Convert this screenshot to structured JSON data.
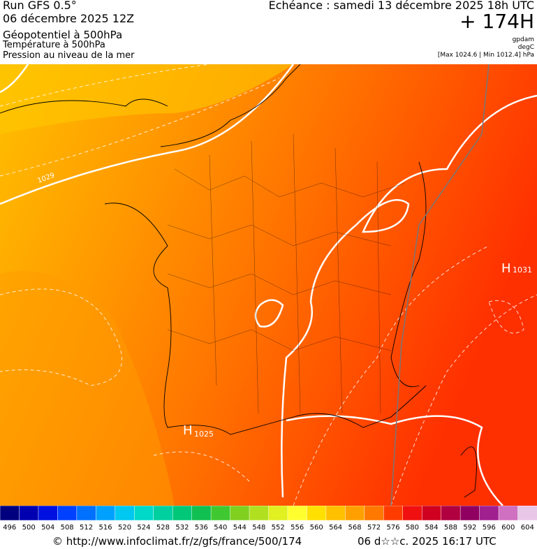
{
  "header": {
    "run": "Run GFS 0.5°",
    "date": "06 décembre 2025 12Z",
    "field1": "Géopotentiel à 500hPa",
    "field2": "Température à 500hPa",
    "field3": "Pression au niveau de la mer",
    "valid": "Echéance : samedi 13 décembre 2025 18h UTC",
    "lead": "+ 174H",
    "unit1": "gpdam",
    "unit2": "degC",
    "range": "[Max 1024.6 | Min 1012.4] hPa"
  },
  "map": {
    "labels": [
      {
        "text": "1029"
      },
      {
        "text": "H"
      },
      {
        "text": "1025"
      },
      {
        "text": "H"
      },
      {
        "text": "1031"
      }
    ]
  },
  "colorbar": {
    "ticks": [
      496,
      500,
      504,
      508,
      512,
      516,
      520,
      524,
      528,
      532,
      536,
      540,
      544,
      548,
      552,
      556,
      560,
      564,
      568,
      572,
      576,
      580,
      584,
      588,
      592,
      596,
      600,
      604
    ],
    "colors": [
      "#00007f",
      "#0000b0",
      "#0010e0",
      "#0040ff",
      "#0070ff",
      "#00a0ff",
      "#00c8f0",
      "#00d8c8",
      "#00d0a0",
      "#00c878",
      "#10c050",
      "#40c830",
      "#80d020",
      "#b0e020",
      "#e0f020",
      "#ffff30",
      "#ffe000",
      "#ffc000",
      "#ffa000",
      "#ff7800",
      "#ff3c00",
      "#f01010",
      "#d00020",
      "#b00040",
      "#900060",
      "#a02090",
      "#d070c0",
      "#e8c8e8"
    ]
  },
  "footer": {
    "url": "© http://www.infoclimat.fr/z/gfs/france/500/174",
    "stamp": "06 d☆☆c. 2025 16:17 UTC"
  }
}
